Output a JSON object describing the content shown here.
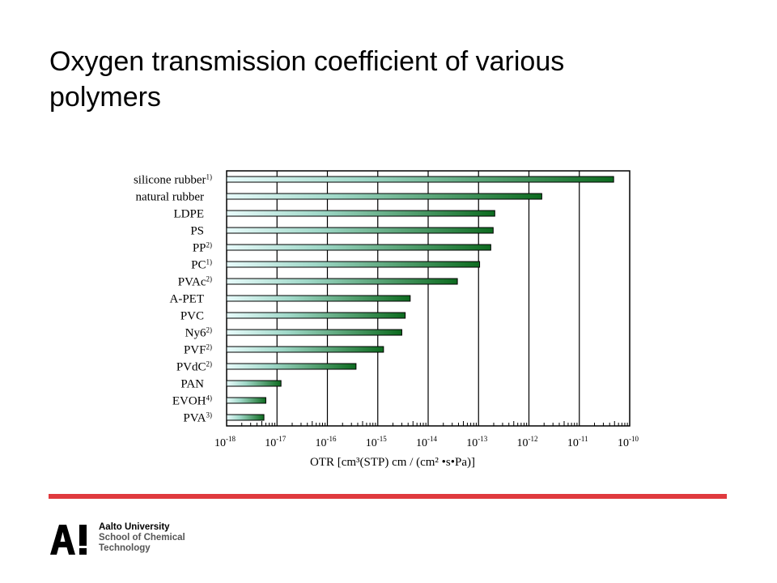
{
  "slide": {
    "title": "Oxygen transmission coefficient of various polymers"
  },
  "colors": {
    "accent_red": "#e03a3e",
    "bar_start": "#e8fbfb",
    "bar_end": "#0d6b1f",
    "gridline": "#000000"
  },
  "chart_data": {
    "type": "bar",
    "orientation": "horizontal",
    "x_scale": "log",
    "xlim": [
      1e-18,
      1e-10
    ],
    "x_ticks": [
      1e-18,
      1e-17,
      1e-16,
      1e-15,
      1e-14,
      1e-13,
      1e-12,
      1e-11,
      1e-10
    ],
    "x_tick_labels": [
      {
        "base": "10",
        "exp": "-18"
      },
      {
        "base": "10",
        "exp": "-17"
      },
      {
        "base": "10",
        "exp": "-16"
      },
      {
        "base": "10",
        "exp": "-15"
      },
      {
        "base": "10",
        "exp": "-14"
      },
      {
        "base": "10",
        "exp": "-13"
      },
      {
        "base": "10",
        "exp": "-12"
      },
      {
        "base": "10",
        "exp": "-11"
      },
      {
        "base": "10",
        "exp": "-10"
      }
    ],
    "xlabel": "OTR  [cm³(STP) cm / (cm² •s•Pa)]",
    "grid": true,
    "categories": [
      {
        "name": "silicone rubber",
        "note": "1)"
      },
      {
        "name": "natural rubber",
        "note": ""
      },
      {
        "name": "LDPE",
        "note": ""
      },
      {
        "name": "PS",
        "note": ""
      },
      {
        "name": "PP",
        "note": "2)"
      },
      {
        "name": "PC",
        "note": "1)"
      },
      {
        "name": "PVAc",
        "note": "2)"
      },
      {
        "name": "A-PET",
        "note": ""
      },
      {
        "name": "PVC",
        "note": ""
      },
      {
        "name": "Ny6",
        "note": "2)"
      },
      {
        "name": "PVF",
        "note": "2)"
      },
      {
        "name": "PVdC",
        "note": "2)"
      },
      {
        "name": "PAN",
        "note": ""
      },
      {
        "name": "EVOH",
        "note": "4)"
      },
      {
        "name": "PVA",
        "note": "3)"
      }
    ],
    "values": [
      4.8e-11,
      1.8e-12,
      2.1e-13,
      1.95e-13,
      1.75e-13,
      1.05e-13,
      3.8e-14,
      4.4e-15,
      3.5e-15,
      3e-15,
      1.3e-15,
      3.7e-16,
      1.2e-17,
      6e-18,
      5.5e-18
    ]
  },
  "logo": {
    "mark": "A!",
    "line1": "Aalto University",
    "line2": "School of Chemical",
    "line3": "Technology"
  }
}
